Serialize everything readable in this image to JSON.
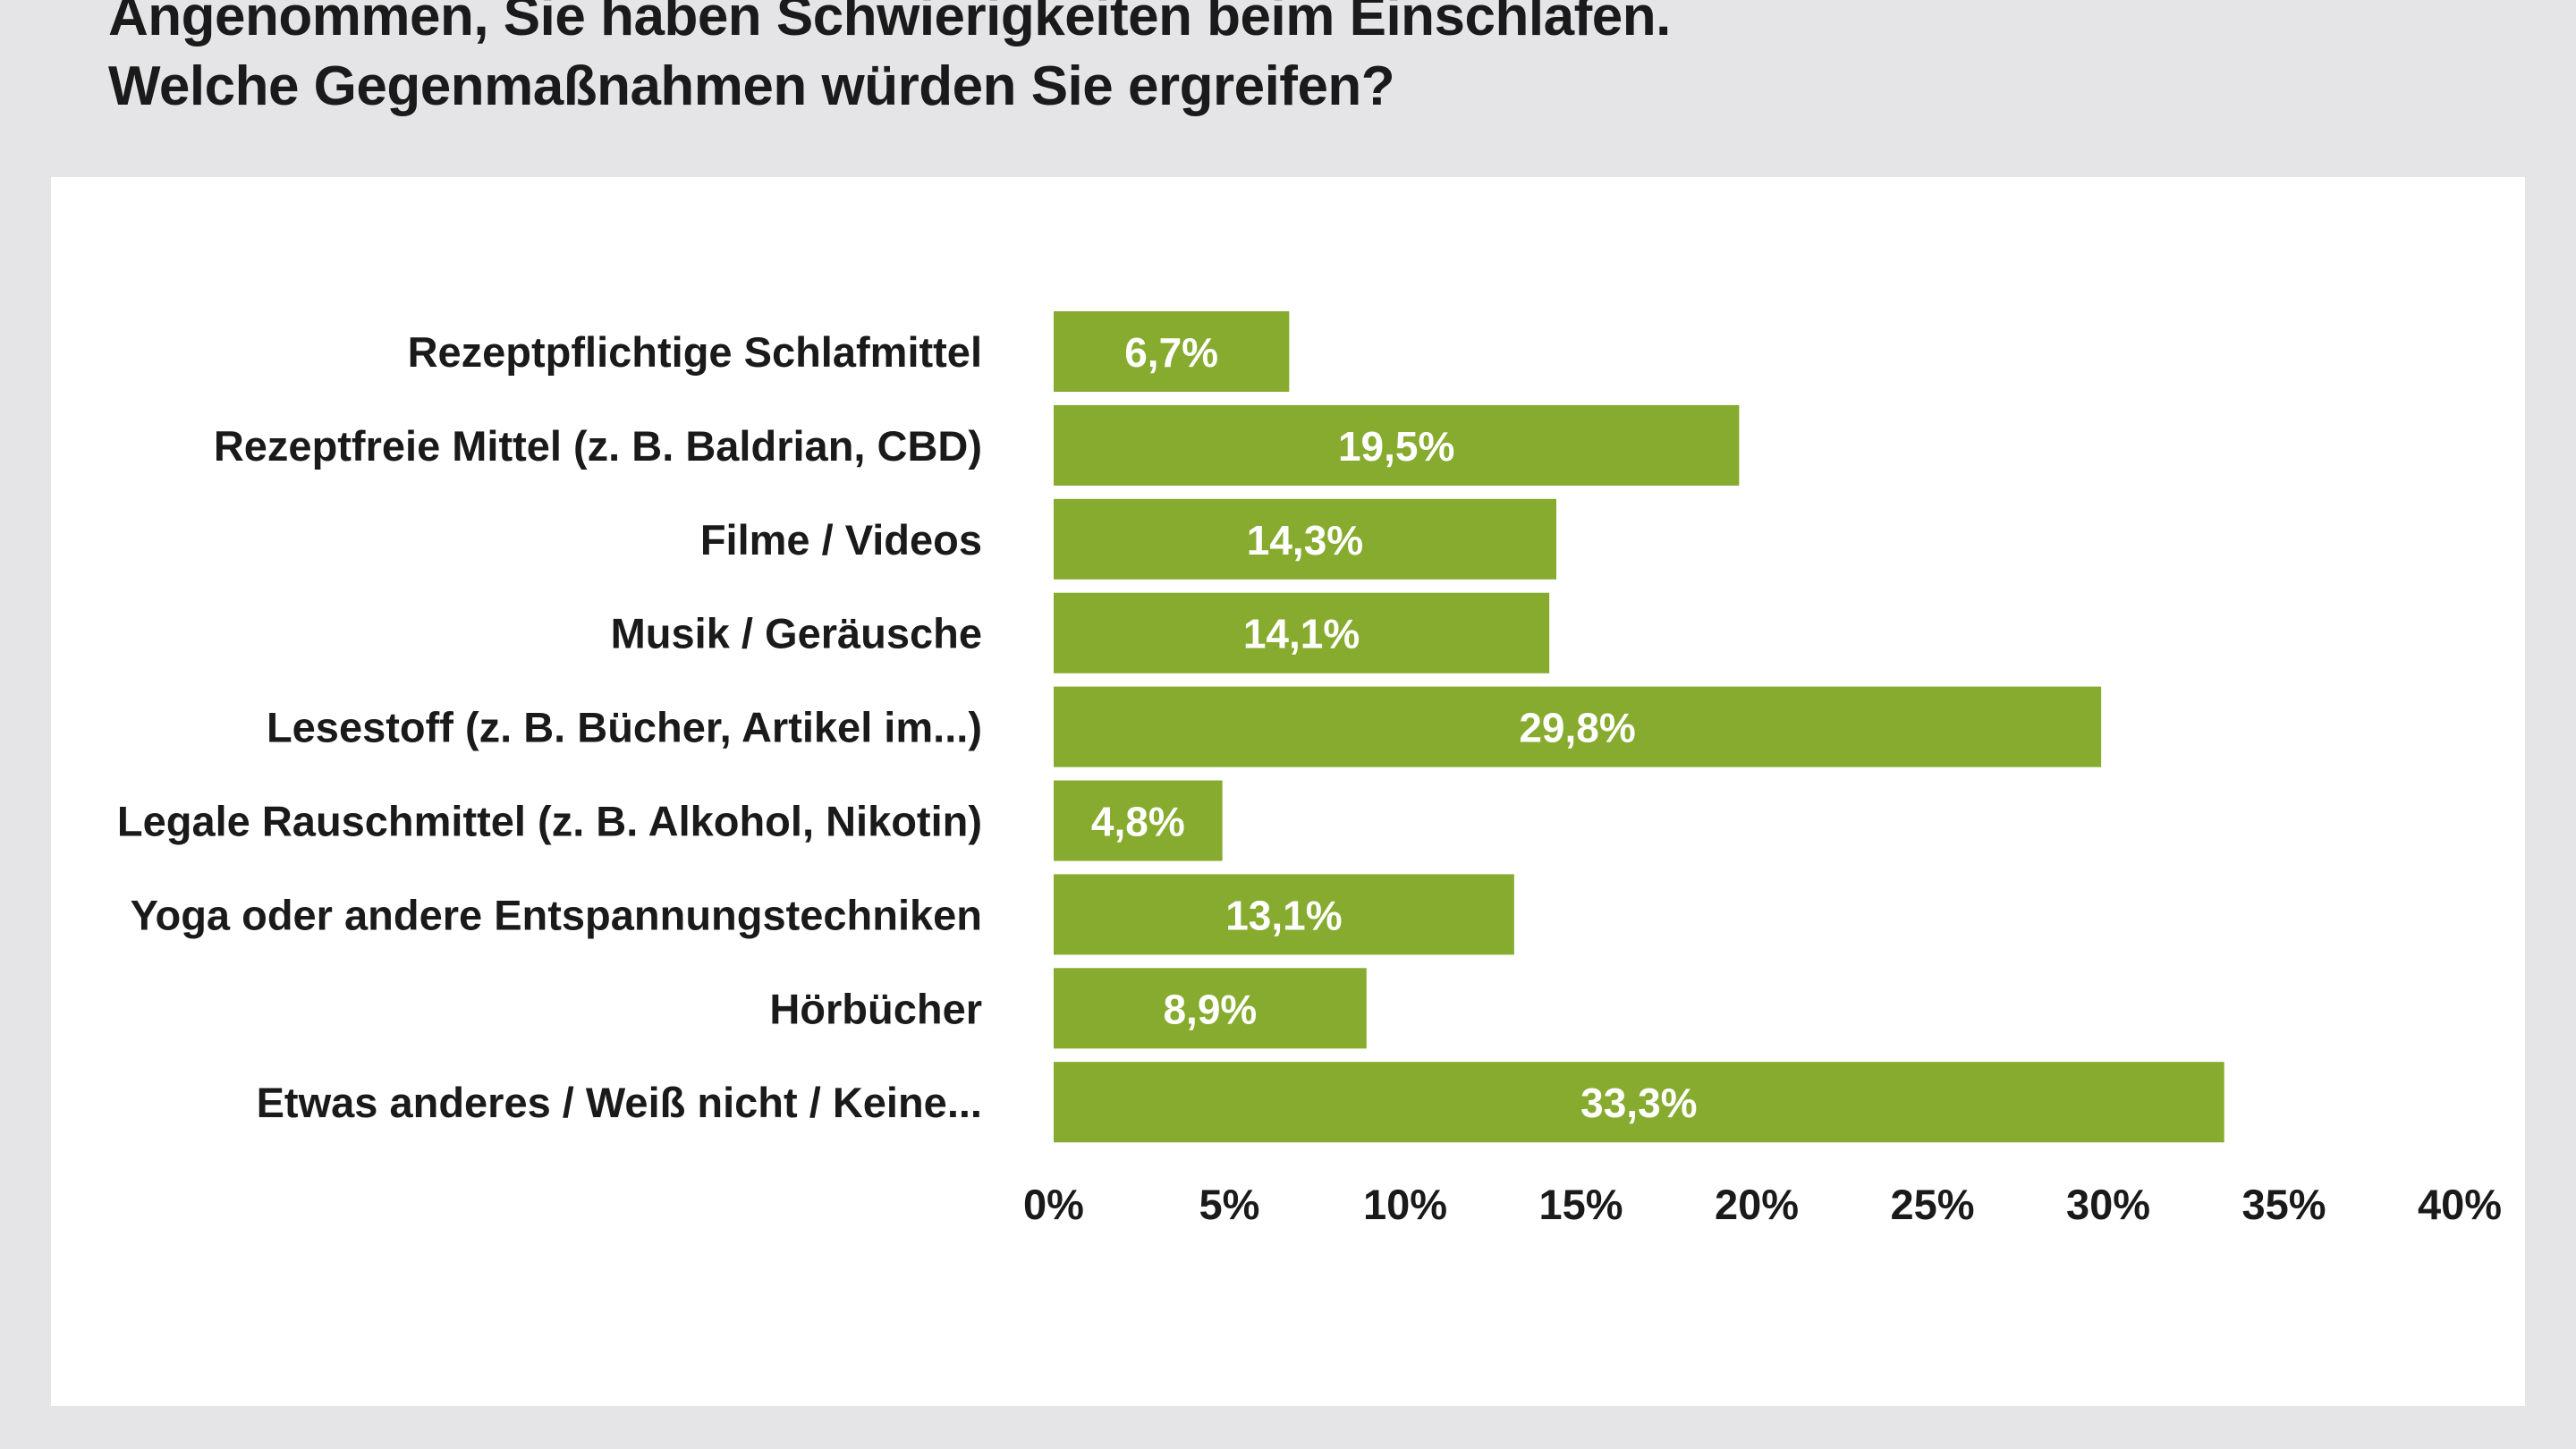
{
  "title": {
    "line1": "Angenommen, Sie haben Schwierigkeiten beim Einschlafen.",
    "line2": "Welche Gegenmaßnahmen würden Sie ergreifen?"
  },
  "colors": {
    "bar": "#86ab2e",
    "bar_label": "#ffffff",
    "page_background": "#e5e5e7",
    "panel_background": "#ffffff",
    "text": "#1a1a1a"
  },
  "chart_data": {
    "type": "bar",
    "orientation": "horizontal",
    "categories": [
      "Rezeptpflichtige Schlafmittel",
      "Rezeptfreie Mittel (z. B. Baldrian, CBD)",
      "Filme / Videos",
      "Musik / Geräusche",
      "Lesestoff (z. B. Bücher, Artikel im...)",
      "Legale Rauschmittel (z. B. Alkohol, Nikotin)",
      "Yoga oder andere Entspannungstechniken",
      "Hörbücher",
      "Etwas anderes / Weiß nicht / Keine..."
    ],
    "values": [
      6.7,
      19.5,
      14.3,
      14.1,
      29.8,
      4.8,
      13.1,
      8.9,
      33.3
    ],
    "value_labels": [
      "6,7%",
      "19,5%",
      "14,3%",
      "14,1%",
      "29,8%",
      "4,8%",
      "13,1%",
      "8,9%",
      "33,3%"
    ],
    "x_ticks": [
      0,
      5,
      10,
      15,
      20,
      25,
      30,
      35,
      40
    ],
    "x_tick_labels": [
      "0%",
      "5%",
      "10%",
      "15%",
      "20%",
      "25%",
      "30%",
      "35%",
      "40%"
    ],
    "xlim": [
      0,
      40
    ],
    "grid": false,
    "legend": "none"
  }
}
